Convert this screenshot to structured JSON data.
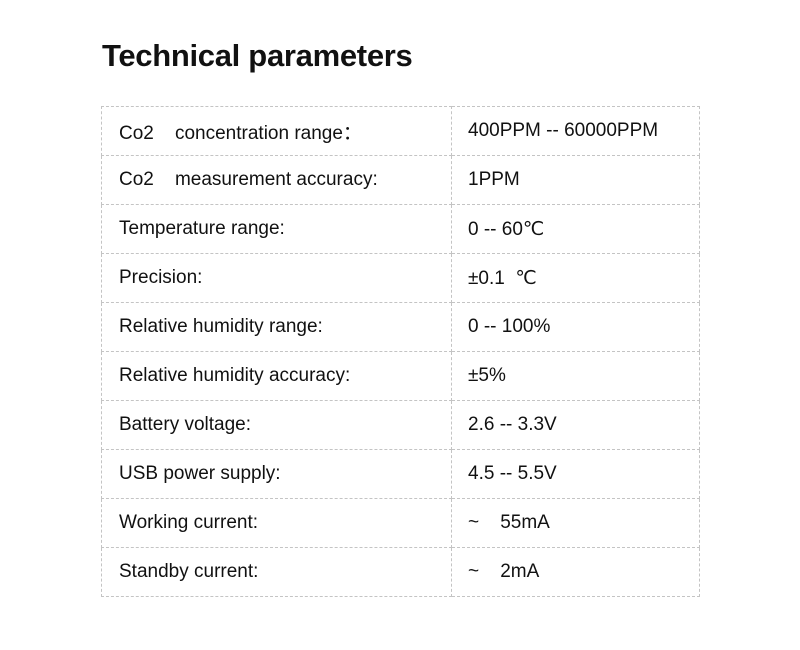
{
  "title": "Technical parameters",
  "rows": [
    {
      "label": "Co2    concentration range：",
      "value": "400PPM -- 60000PPM"
    },
    {
      "label": "Co2    measurement accuracy:",
      "value": "1PPM"
    },
    {
      "label": "Temperature range:",
      "value": "0 -- 60℃"
    },
    {
      "label": "Precision:",
      "value": "±0.1  ℃"
    },
    {
      "label": "Relative humidity range:",
      "value": "0 -- 100%"
    },
    {
      "label": "Relative humidity accuracy:",
      "value": "±5%"
    },
    {
      "label": "Battery voltage:",
      "value": "2.6 -- 3.3V"
    },
    {
      "label": "USB power supply:",
      "value": "4.5 -- 5.5V"
    },
    {
      "label": "Working current:",
      "value": "~    55mA"
    },
    {
      "label": "Standby current:",
      "value": "~    2mA"
    }
  ]
}
